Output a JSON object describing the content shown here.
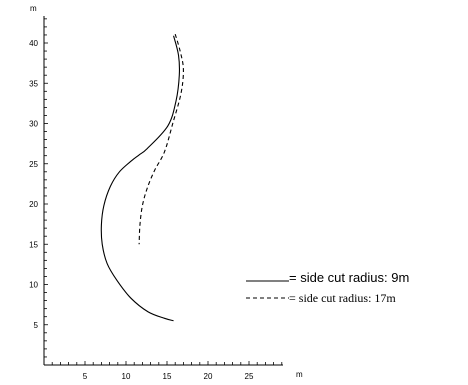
{
  "chart_data": {
    "type": "line",
    "title": "",
    "xlabel": "m",
    "ylabel": "m",
    "xlim": [
      0,
      29
    ],
    "ylim": [
      0,
      43
    ],
    "x_ticks": [
      5,
      10,
      15,
      20,
      25
    ],
    "y_ticks": [
      5,
      10,
      15,
      20,
      25,
      30,
      35,
      40
    ],
    "grid": false,
    "legend_position": "bottom-right",
    "series": [
      {
        "name": "= side cut radius:  9m",
        "style": "solid",
        "color": "#000000",
        "points": [
          [
            15.8,
            40.9
          ],
          [
            16.4,
            38.5
          ],
          [
            16.5,
            36.0
          ],
          [
            16.1,
            32.8
          ],
          [
            15.1,
            29.7
          ],
          [
            12.6,
            26.9
          ],
          [
            11.6,
            26.1
          ],
          [
            10.7,
            25.4
          ],
          [
            9.2,
            24.0
          ],
          [
            8.1,
            22.2
          ],
          [
            7.3,
            19.8
          ],
          [
            7.0,
            17.4
          ],
          [
            7.1,
            15.0
          ],
          [
            7.7,
            12.6
          ],
          [
            8.9,
            10.5
          ],
          [
            10.6,
            8.3
          ],
          [
            12.7,
            6.6
          ],
          [
            14.7,
            5.8
          ],
          [
            15.8,
            5.5
          ]
        ]
      },
      {
        "name": "= side cut radius: 17m",
        "style": "dashed",
        "color": "#000000",
        "points": [
          [
            16.0,
            41.1
          ],
          [
            16.6,
            39.0
          ],
          [
            17.0,
            36.7
          ],
          [
            16.7,
            33.7
          ],
          [
            15.7,
            30.0
          ],
          [
            14.7,
            26.5
          ],
          [
            13.5,
            24.2
          ],
          [
            12.6,
            22.0
          ],
          [
            12.0,
            19.8
          ],
          [
            11.7,
            17.4
          ],
          [
            11.6,
            15.0
          ]
        ]
      }
    ]
  }
}
